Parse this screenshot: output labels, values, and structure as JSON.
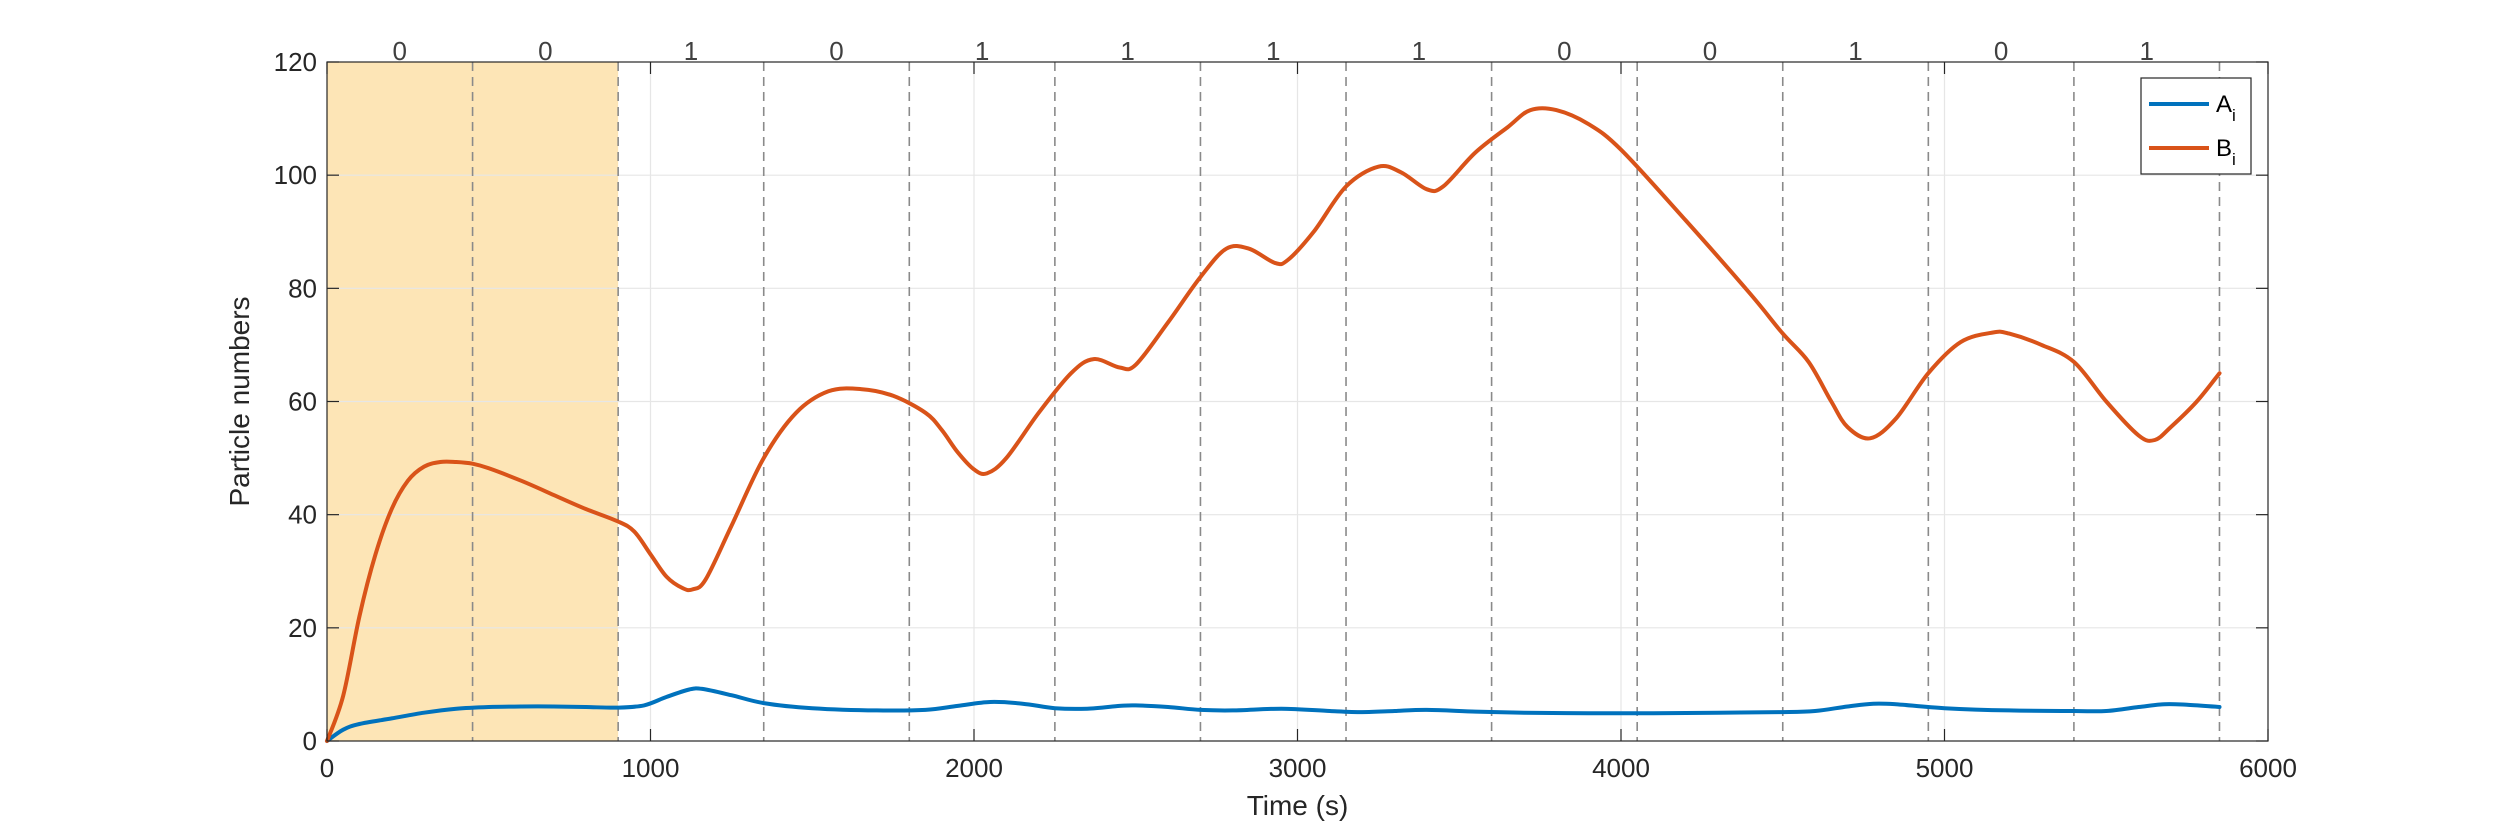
{
  "chart_data": {
    "type": "line",
    "xlabel": "Time (s)",
    "ylabel": "Particle numbers",
    "xlim": [
      0,
      6000
    ],
    "ylim": [
      0,
      120
    ],
    "x_ticks": [
      0,
      1000,
      2000,
      3000,
      4000,
      5000,
      6000
    ],
    "y_ticks": [
      0,
      20,
      40,
      60,
      80,
      100,
      120
    ],
    "grid": true,
    "legend_position": "top-right",
    "segment_boundaries": [
      450,
      900,
      1350,
      1800,
      2250,
      2700,
      3150,
      3600,
      4050,
      4500,
      4950,
      5400,
      5850
    ],
    "segment_labels": [
      "0",
      "0",
      "1",
      "0",
      "1",
      "1",
      "1",
      "1",
      "0",
      "0",
      "1",
      "0",
      "1"
    ],
    "shaded_region": {
      "x_start": 0,
      "x_end": 900,
      "color": "#fde5b6"
    },
    "series": [
      {
        "name": "A",
        "name_subscript": "i",
        "color": "#0072bd",
        "x": [
          0,
          50,
          100,
          200,
          300,
          400,
          500,
          600,
          700,
          800,
          900,
          980,
          1050,
          1120,
          1160,
          1250,
          1350,
          1500,
          1700,
          1850,
          1950,
          2050,
          2150,
          2250,
          2350,
          2450,
          2500,
          2600,
          2700,
          2800,
          2950,
          3100,
          3200,
          3300,
          3400,
          3550,
          3700,
          3900,
          4100,
          4300,
          4500,
          4600,
          4700,
          4780,
          4850,
          5000,
          5200,
          5400,
          5500,
          5600,
          5680,
          5750,
          5850
        ],
        "y": [
          0,
          2,
          3,
          4,
          5,
          5.7,
          6,
          6.1,
          6.1,
          6,
          5.9,
          6.3,
          7.8,
          9.1,
          9.2,
          8.1,
          6.7,
          5.8,
          5.4,
          5.5,
          6.2,
          6.9,
          6.6,
          5.8,
          5.7,
          6.2,
          6.3,
          6.0,
          5.5,
          5.4,
          5.7,
          5.3,
          5.1,
          5.3,
          5.5,
          5.2,
          5.0,
          4.9,
          4.9,
          5.0,
          5.1,
          5.3,
          6.1,
          6.6,
          6.5,
          5.8,
          5.4,
          5.3,
          5.3,
          6.0,
          6.5,
          6.4,
          6.0
        ]
      },
      {
        "name": "B",
        "name_subscript": "i",
        "color": "#d95319",
        "x": [
          0,
          50,
          100,
          150,
          200,
          250,
          300,
          350,
          400,
          450,
          500,
          600,
          700,
          800,
          900,
          950,
          1000,
          1050,
          1100,
          1130,
          1170,
          1250,
          1350,
          1450,
          1550,
          1650,
          1750,
          1850,
          1900,
          1950,
          2000,
          2040,
          2100,
          2200,
          2300,
          2370,
          2450,
          2500,
          2600,
          2700,
          2780,
          2850,
          2930,
          2970,
          3050,
          3150,
          3250,
          3320,
          3400,
          3450,
          3550,
          3650,
          3720,
          3800,
          3900,
          4000,
          4200,
          4400,
          4500,
          4580,
          4650,
          4700,
          4770,
          4850,
          4950,
          5050,
          5150,
          5200,
          5300,
          5400,
          5500,
          5600,
          5650,
          5700,
          5780,
          5850
        ],
        "y": [
          0,
          8,
          22,
          33,
          41,
          46,
          48.5,
          49.3,
          49.3,
          49,
          48.2,
          46,
          43.5,
          41,
          38.8,
          37,
          33,
          29,
          27,
          26.8,
          28.5,
          38,
          50,
          58,
          61.8,
          62.2,
          61,
          58,
          55,
          51,
          48,
          47.3,
          50,
          58,
          65,
          67.5,
          66,
          66.5,
          74,
          82,
          87,
          87,
          84.5,
          85,
          90,
          98,
          101.5,
          100.5,
          97.5,
          98,
          104,
          108.5,
          111.5,
          111.5,
          109,
          104.5,
          92,
          79,
          72,
          67,
          60,
          55.5,
          53.5,
          57,
          65,
          70.5,
          72.2,
          72,
          70,
          67,
          60,
          54,
          53.2,
          55.5,
          60,
          65
        ]
      }
    ]
  }
}
